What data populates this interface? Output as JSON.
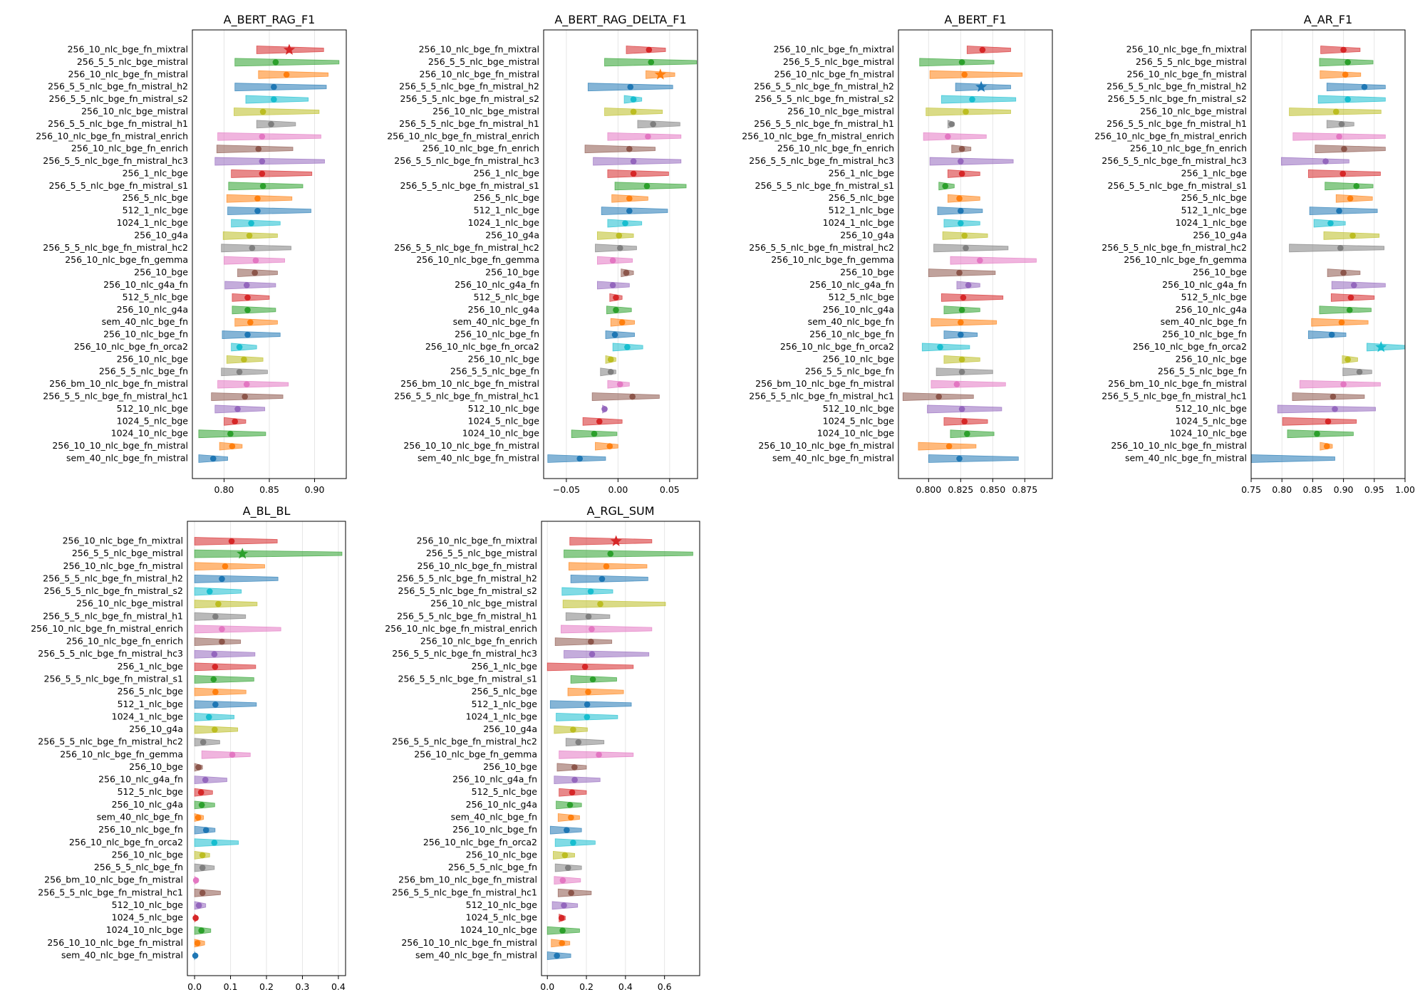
{
  "chart_data": {
    "type": "violin-interval",
    "categories": [
      "256_10_nlc_bge_fn_mixtral",
      "256_5_5_nlc_bge_mistral",
      "256_10_nlc_bge_fn_mistral",
      "256_5_5_nlc_bge_fn_mistral_h2",
      "256_5_5_nlc_bge_fn_mistral_s2",
      "256_10_nlc_bge_mistral",
      "256_5_5_nlc_bge_fn_mistral_h1",
      "256_10_nlc_bge_fn_mistral_enrich",
      "256_10_nlc_bge_fn_enrich",
      "256_5_5_nlc_bge_fn_mistral_hc3",
      "256_1_nlc_bge",
      "256_5_5_nlc_bge_fn_mistral_s1",
      "256_5_nlc_bge",
      "512_1_nlc_bge",
      "1024_1_nlc_bge",
      "256_10_g4a",
      "256_5_5_nlc_bge_fn_mistral_hc2",
      "256_10_nlc_bge_fn_gemma",
      "256_10_bge",
      "256_10_nlc_g4a_fn",
      "512_5_nlc_bge",
      "256_10_nlc_g4a",
      "sem_40_nlc_bge_fn",
      "256_10_nlc_bge_fn",
      "256_10_nlc_bge_fn_orca2",
      "256_10_nlc_bge",
      "256_5_5_nlc_bge_fn",
      "256_bm_10_nlc_bge_fn_mistral",
      "256_5_5_nlc_bge_fn_mistral_hc1",
      "512_10_nlc_bge",
      "1024_5_nlc_bge",
      "1024_10_nlc_bge",
      "256_10_10_nlc_bge_fn_mistral",
      "sem_40_nlc_bge_fn_mistral"
    ],
    "colors": [
      "#d62728",
      "#2ca02c",
      "#ff7f0e",
      "#1f77b4",
      "#17becf",
      "#bcbd22",
      "#7f7f7f",
      "#e377c2",
      "#8c564b",
      "#9467bd"
    ],
    "panels": [
      {
        "title": "A_BERT_RAG_F1",
        "xlim": [
          0.765,
          0.935
        ],
        "ticks": [
          "0.80",
          "0.85",
          "0.90"
        ],
        "tick_values": [
          0.8,
          0.85,
          0.9
        ],
        "star_index": 0,
        "points": [
          0.872,
          0.857,
          0.869,
          0.855,
          0.855,
          0.843,
          0.852,
          0.842,
          0.838,
          0.842,
          0.842,
          0.843,
          0.837,
          0.837,
          0.83,
          0.828,
          0.831,
          0.835,
          0.834,
          0.825,
          0.826,
          0.826,
          0.829,
          0.826,
          0.817,
          0.822,
          0.817,
          0.825,
          0.823,
          0.815,
          0.812,
          0.807,
          0.809,
          0.788
        ],
        "lo": [
          0.836,
          0.812,
          0.838,
          0.812,
          0.824,
          0.811,
          0.836,
          0.793,
          0.792,
          0.79,
          0.808,
          0.805,
          0.803,
          0.804,
          0.808,
          0.799,
          0.797,
          0.8,
          0.815,
          0.801,
          0.809,
          0.809,
          0.812,
          0.798,
          0.808,
          0.803,
          0.797,
          0.793,
          0.786,
          0.79,
          0.8,
          0.772,
          0.795,
          0.772
        ],
        "hi": [
          0.91,
          0.927,
          0.915,
          0.913,
          0.893,
          0.905,
          0.879,
          0.907,
          0.876,
          0.911,
          0.897,
          0.887,
          0.875,
          0.896,
          0.862,
          0.859,
          0.874,
          0.867,
          0.859,
          0.857,
          0.85,
          0.857,
          0.859,
          0.862,
          0.836,
          0.843,
          0.848,
          0.871,
          0.865,
          0.845,
          0.824,
          0.846,
          0.82,
          0.804
        ]
      },
      {
        "title": "A_BERT_RAG_DELTA_F1",
        "xlim": [
          -0.072,
          0.077
        ],
        "ticks": [
          "−0.05",
          "0.00",
          "0.05"
        ],
        "tick_values": [
          -0.05,
          0.0,
          0.05
        ],
        "star_index": 2,
        "points": [
          0.03,
          0.032,
          0.041,
          0.012,
          0.015,
          0.015,
          0.034,
          0.029,
          0.011,
          0.015,
          0.015,
          0.028,
          0.011,
          0.011,
          0.007,
          0.001,
          0.002,
          -0.005,
          0.008,
          -0.005,
          -0.002,
          -0.002,
          0.004,
          -0.003,
          0.009,
          -0.007,
          -0.007,
          0.002,
          0.014,
          -0.013,
          -0.018,
          -0.023,
          -0.008,
          -0.037
        ],
        "lo": [
          0.008,
          -0.013,
          0.027,
          -0.029,
          0.006,
          -0.013,
          0.019,
          -0.01,
          -0.032,
          -0.024,
          -0.01,
          -0.003,
          -0.006,
          -0.016,
          -0.01,
          -0.02,
          -0.022,
          -0.02,
          0.003,
          -0.02,
          -0.008,
          -0.011,
          -0.007,
          -0.012,
          -0.005,
          -0.012,
          -0.017,
          -0.01,
          -0.025,
          -0.015,
          -0.034,
          -0.045,
          -0.022,
          -0.068
        ],
        "hi": [
          0.046,
          0.076,
          0.055,
          0.053,
          0.023,
          0.043,
          0.06,
          0.061,
          0.036,
          0.061,
          0.049,
          0.066,
          0.029,
          0.048,
          0.023,
          0.015,
          0.018,
          0.014,
          0.015,
          0.011,
          0.004,
          0.013,
          0.016,
          0.016,
          0.024,
          -0.002,
          -0.002,
          0.011,
          0.04,
          -0.011,
          0.004,
          -0.001,
          0.0,
          -0.012
        ]
      },
      {
        "title": "A_BERT_F1",
        "xlim": [
          0.7765,
          0.8965
        ],
        "ticks": [
          "0.800",
          "0.825",
          "0.850",
          "0.875"
        ],
        "tick_values": [
          0.8,
          0.825,
          0.85,
          0.875
        ],
        "star_index": 3,
        "points": [
          0.842,
          0.826,
          0.828,
          0.841,
          0.834,
          0.829,
          0.818,
          0.815,
          0.826,
          0.825,
          0.826,
          0.813,
          0.824,
          0.825,
          0.825,
          0.828,
          0.829,
          0.84,
          0.824,
          0.831,
          0.827,
          0.826,
          0.825,
          0.825,
          0.809,
          0.826,
          0.826,
          0.822,
          0.808,
          0.826,
          0.828,
          0.83,
          0.816,
          0.824
        ],
        "lo": [
          0.83,
          0.793,
          0.801,
          0.821,
          0.81,
          0.798,
          0.815,
          0.796,
          0.818,
          0.801,
          0.815,
          0.808,
          0.815,
          0.807,
          0.812,
          0.811,
          0.804,
          0.817,
          0.8,
          0.822,
          0.81,
          0.812,
          0.802,
          0.812,
          0.795,
          0.812,
          0.806,
          0.802,
          0.78,
          0.799,
          0.812,
          0.817,
          0.792,
          0.8
        ],
        "hi": [
          0.864,
          0.851,
          0.873,
          0.864,
          0.868,
          0.864,
          0.82,
          0.845,
          0.833,
          0.866,
          0.84,
          0.82,
          0.84,
          0.842,
          0.84,
          0.846,
          0.862,
          0.884,
          0.852,
          0.84,
          0.858,
          0.84,
          0.853,
          0.838,
          0.832,
          0.84,
          0.85,
          0.86,
          0.835,
          0.857,
          0.846,
          0.851,
          0.837,
          0.87
        ]
      },
      {
        "title": "A_AR_F1",
        "xlim": [
          0.75,
          1.0
        ],
        "ticks": [
          "0.75",
          "0.80",
          "0.85",
          "0.90",
          "0.95",
          "1.00"
        ],
        "tick_values": [
          0.75,
          0.8,
          0.85,
          0.9,
          0.95,
          1.0
        ],
        "star_index": 24,
        "points": [
          0.9,
          0.907,
          0.903,
          0.934,
          0.907,
          0.888,
          0.897,
          0.893,
          0.901,
          0.871,
          0.899,
          0.921,
          0.911,
          0.893,
          0.879,
          0.915,
          0.895,
          null,
          0.9,
          0.917,
          0.912,
          0.91,
          0.897,
          0.881,
          0.961,
          0.907,
          0.926,
          0.9,
          0.883,
          0.886,
          0.875,
          0.857,
          0.873,
          null
        ],
        "lo": [
          0.863,
          0.861,
          0.862,
          0.873,
          0.859,
          0.812,
          0.873,
          0.818,
          0.854,
          0.799,
          0.843,
          0.87,
          0.888,
          0.845,
          0.852,
          0.868,
          0.812,
          null,
          0.874,
          0.881,
          0.88,
          0.861,
          0.848,
          0.843,
          0.938,
          0.898,
          0.899,
          0.829,
          0.817,
          0.793,
          0.801,
          0.809,
          0.862,
          0.75
        ],
        "hi": [
          0.927,
          0.948,
          0.928,
          0.968,
          0.968,
          0.961,
          0.917,
          0.968,
          0.968,
          0.909,
          0.96,
          0.948,
          0.947,
          0.955,
          0.903,
          0.958,
          0.966,
          null,
          0.927,
          0.968,
          0.95,
          0.945,
          0.94,
          0.904,
          1.0,
          0.923,
          0.946,
          0.96,
          0.934,
          0.952,
          0.921,
          0.916,
          0.882,
          0.886
        ]
      },
      {
        "title": "A_BL_BL",
        "xlim": [
          -0.02,
          0.42
        ],
        "ticks": [
          "0.0",
          "0.1",
          "0.2",
          "0.3",
          "0.4"
        ],
        "tick_values": [
          0.0,
          0.1,
          0.2,
          0.3,
          0.4
        ],
        "star_index": 1,
        "points": [
          0.103,
          0.133,
          0.085,
          0.076,
          0.042,
          0.066,
          0.058,
          0.076,
          0.076,
          0.055,
          0.057,
          0.053,
          0.058,
          0.058,
          0.04,
          0.056,
          0.024,
          0.105,
          0.011,
          0.03,
          0.018,
          0.02,
          0.01,
          0.032,
          0.055,
          0.022,
          0.022,
          0.004,
          0.022,
          0.012,
          0.003,
          0.019,
          0.008,
          0.002
        ],
        "lo": [
          0.0,
          0.0,
          0.0,
          0.0,
          0.0,
          0.0,
          0.0,
          0.0,
          0.0,
          0.0,
          0.0,
          0.0,
          0.0,
          0.0,
          0.0,
          0.0,
          0.0,
          0.02,
          0.0,
          0.0,
          0.0,
          0.0,
          0.0,
          0.0,
          0.0,
          0.0,
          0.0,
          0.0,
          0.0,
          0.0,
          0.0,
          0.0,
          0.0,
          0.0
        ],
        "hi": [
          0.23,
          0.41,
          0.195,
          0.232,
          0.13,
          0.174,
          0.142,
          0.24,
          0.128,
          0.168,
          0.17,
          0.165,
          0.143,
          0.172,
          0.11,
          0.12,
          0.07,
          0.155,
          0.022,
          0.09,
          0.05,
          0.056,
          0.025,
          0.057,
          0.122,
          0.042,
          0.055,
          0.01,
          0.072,
          0.031,
          0.008,
          0.045,
          0.028,
          0.004
        ]
      },
      {
        "title": "A_RGL_SUM",
        "xlim": [
          -0.03,
          0.78
        ],
        "ticks": [
          "0.0",
          "0.2",
          "0.4",
          "0.6"
        ],
        "tick_values": [
          0.0,
          0.2,
          0.4,
          0.6
        ],
        "star_index": 0,
        "points": [
          0.352,
          0.323,
          0.302,
          0.28,
          0.222,
          0.271,
          0.211,
          0.227,
          0.223,
          0.229,
          0.193,
          0.233,
          0.209,
          0.204,
          0.203,
          0.132,
          0.159,
          0.264,
          0.139,
          0.14,
          0.127,
          0.116,
          0.121,
          0.099,
          0.132,
          0.09,
          0.106,
          0.079,
          0.122,
          0.085,
          0.073,
          0.078,
          0.075,
          0.049
        ],
        "lo": [
          0.115,
          0.085,
          0.11,
          0.12,
          0.075,
          0.08,
          0.095,
          0.07,
          0.04,
          0.085,
          0.0,
          0.12,
          0.105,
          0.015,
          0.045,
          0.035,
          0.095,
          0.06,
          0.05,
          0.035,
          0.06,
          0.045,
          0.055,
          0.015,
          0.04,
          0.03,
          0.04,
          0.035,
          0.055,
          0.025,
          0.06,
          0.0,
          0.02,
          0.0
        ],
        "hi": [
          0.535,
          0.745,
          0.51,
          0.515,
          0.335,
          0.605,
          0.32,
          0.535,
          0.33,
          0.52,
          0.44,
          0.355,
          0.39,
          0.43,
          0.36,
          0.205,
          0.29,
          0.44,
          0.2,
          0.27,
          0.2,
          0.175,
          0.165,
          0.175,
          0.245,
          0.14,
          0.175,
          0.17,
          0.225,
          0.155,
          0.092,
          0.165,
          0.115,
          0.12
        ]
      }
    ]
  }
}
